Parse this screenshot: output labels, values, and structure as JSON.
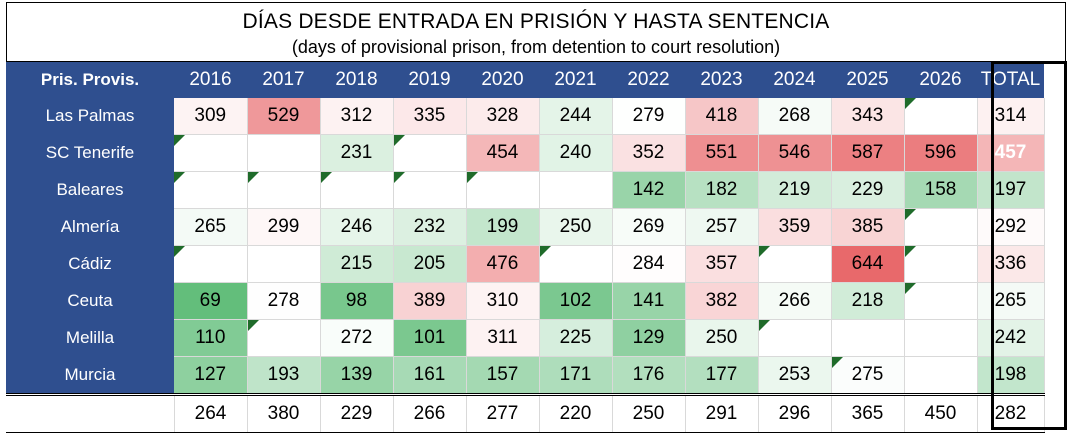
{
  "chart_data": {
    "type": "table",
    "title": "DÍAS DESDE ENTRADA EN PRISIÓN Y HASTA SENTENCIA",
    "subtitle": "(days of provisional prison, from detention to court resolution)",
    "row_header": "Pris. Provis.",
    "columns": [
      "2016",
      "2017",
      "2018",
      "2019",
      "2020",
      "2021",
      "2022",
      "2023",
      "2024",
      "2025",
      "2026",
      "TOTAL"
    ],
    "rows": [
      {
        "name": "Las Palmas",
        "values": [
          309,
          529,
          312,
          335,
          328,
          244,
          279,
          418,
          268,
          343,
          null,
          314
        ],
        "flags": [
          0,
          0,
          0,
          0,
          0,
          0,
          0,
          0,
          0,
          0,
          1,
          0
        ]
      },
      {
        "name": "SC Tenerife",
        "values": [
          null,
          null,
          231,
          null,
          454,
          240,
          352,
          551,
          546,
          587,
          596,
          457
        ],
        "flags": [
          1,
          0,
          0,
          1,
          0,
          0,
          0,
          0,
          0,
          0,
          0,
          0
        ]
      },
      {
        "name": "Baleares",
        "values": [
          null,
          null,
          null,
          null,
          null,
          null,
          142,
          182,
          219,
          229,
          158,
          197
        ],
        "flags": [
          1,
          1,
          1,
          1,
          1,
          0,
          0,
          0,
          0,
          0,
          0,
          0
        ]
      },
      {
        "name": "Almería",
        "values": [
          265,
          299,
          246,
          232,
          199,
          250,
          269,
          257,
          359,
          385,
          null,
          292
        ],
        "flags": [
          0,
          0,
          0,
          0,
          0,
          0,
          0,
          0,
          0,
          0,
          1,
          0
        ]
      },
      {
        "name": "Cádiz",
        "values": [
          null,
          null,
          215,
          205,
          476,
          null,
          284,
          357,
          null,
          644,
          null,
          336
        ],
        "flags": [
          1,
          0,
          0,
          0,
          0,
          1,
          0,
          0,
          1,
          0,
          1,
          0
        ]
      },
      {
        "name": "Ceuta",
        "values": [
          69,
          278,
          98,
          389,
          310,
          102,
          141,
          382,
          266,
          218,
          null,
          265
        ],
        "flags": [
          0,
          0,
          0,
          0,
          0,
          0,
          0,
          0,
          0,
          0,
          1,
          0
        ]
      },
      {
        "name": "Melilla",
        "values": [
          110,
          null,
          272,
          101,
          311,
          225,
          129,
          250,
          null,
          null,
          null,
          242
        ],
        "flags": [
          0,
          1,
          0,
          0,
          0,
          0,
          0,
          0,
          1,
          0,
          0,
          0
        ]
      },
      {
        "name": "Murcia",
        "values": [
          127,
          193,
          139,
          161,
          157,
          171,
          176,
          177,
          253,
          275,
          null,
          198
        ],
        "flags": [
          0,
          0,
          0,
          0,
          0,
          0,
          0,
          0,
          0,
          1,
          0,
          0
        ]
      }
    ],
    "totals": [
      264,
      380,
      229,
      266,
      277,
      220,
      250,
      291,
      296,
      365,
      450,
      282
    ],
    "color_scale": {
      "min": 69,
      "mid": 280,
      "max": 644,
      "low_color": "#63be7b",
      "mid_color": "#ffffff",
      "high_color": "#e8696b"
    }
  }
}
